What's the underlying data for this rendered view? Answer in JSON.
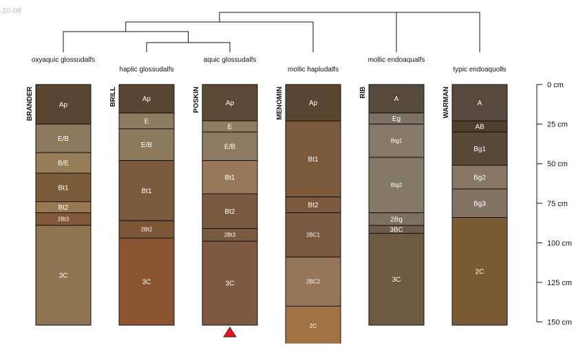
{
  "corner_label": "-10-08",
  "profiles": [
    {
      "id": "BRANDER",
      "classification": "oxyaquic glossudalfs",
      "label_row": 0,
      "horizons": [
        {
          "name": "Ap",
          "top": 0,
          "bottom": 25,
          "color": "#5a4630",
          "text_color": "#ffffff",
          "small": false
        },
        {
          "name": "E/B",
          "top": 25,
          "bottom": 43,
          "color": "#8c7a5f",
          "text_color": "#ffffff",
          "small": false
        },
        {
          "name": "B/E",
          "top": 43,
          "bottom": 56,
          "color": "#957e58",
          "text_color": "#ffffff",
          "small": false
        },
        {
          "name": "Bt1",
          "top": 56,
          "bottom": 74,
          "color": "#7a5d38",
          "text_color": "#ffffff",
          "small": false
        },
        {
          "name": "Bt2",
          "top": 74,
          "bottom": 81,
          "color": "#97784f",
          "text_color": "#ffffff",
          "small": false
        },
        {
          "name": "2Bt3",
          "top": 81,
          "bottom": 89,
          "color": "#835938",
          "text_color": "#ffffff",
          "small": true
        },
        {
          "name": "3C",
          "top": 89,
          "bottom": 152,
          "color": "#8e7450",
          "text_color": "#ffffff",
          "small": false
        }
      ],
      "marker": false
    },
    {
      "id": "BRILL",
      "classification": "haplic glossudalfs",
      "label_row": 1,
      "horizons": [
        {
          "name": "Ap",
          "top": 0,
          "bottom": 18,
          "color": "#5a4630",
          "text_color": "#ffffff",
          "small": false
        },
        {
          "name": "E",
          "top": 18,
          "bottom": 28,
          "color": "#8e7a5e",
          "text_color": "#ffffff",
          "small": false
        },
        {
          "name": "E/B",
          "top": 28,
          "bottom": 48,
          "color": "#8d7a5d",
          "text_color": "#ffffff",
          "small": false
        },
        {
          "name": "Bt1",
          "top": 48,
          "bottom": 86,
          "color": "#7a5a3c",
          "text_color": "#ffffff",
          "small": false
        },
        {
          "name": "2Bt2",
          "top": 86,
          "bottom": 97,
          "color": "#7d5838",
          "text_color": "#ffffff",
          "small": true
        },
        {
          "name": "3C",
          "top": 97,
          "bottom": 152,
          "color": "#8a5530",
          "text_color": "#ffffff",
          "small": false
        }
      ],
      "marker": false
    },
    {
      "id": "POSKIN",
      "classification": "aquic glossudalfs",
      "label_row": 0,
      "horizons": [
        {
          "name": "Ap",
          "top": 0,
          "bottom": 23,
          "color": "#5b4934",
          "text_color": "#ffffff",
          "small": false
        },
        {
          "name": "E",
          "top": 23,
          "bottom": 30,
          "color": "#937d60",
          "text_color": "#ffffff",
          "small": false
        },
        {
          "name": "E/B",
          "top": 30,
          "bottom": 48,
          "color": "#8e7b61",
          "text_color": "#ffffff",
          "small": false
        },
        {
          "name": "Bt1",
          "top": 48,
          "bottom": 69,
          "color": "#97795a",
          "text_color": "#ffffff",
          "small": false
        },
        {
          "name": "Bt2",
          "top": 69,
          "bottom": 91,
          "color": "#7a5a3e",
          "text_color": "#ffffff",
          "small": false
        },
        {
          "name": "2Bt3",
          "top": 91,
          "bottom": 99,
          "color": "#7a5b40",
          "text_color": "#ffffff",
          "small": true
        },
        {
          "name": "3C",
          "top": 99,
          "bottom": 152,
          "color": "#7e593f",
          "text_color": "#ffffff",
          "small": false
        }
      ],
      "marker": true
    },
    {
      "id": "MENOMIN",
      "classification": "mollic hapludalfs",
      "label_row": 1,
      "horizons": [
        {
          "name": "Ap",
          "top": 0,
          "bottom": 23,
          "color": "#5a4630",
          "text_color": "#ffffff",
          "small": false
        },
        {
          "name": "Bt1",
          "top": 23,
          "bottom": 71,
          "color": "#7a5a3b",
          "text_color": "#ffffff",
          "small": false
        },
        {
          "name": "Bt2",
          "top": 71,
          "bottom": 81,
          "color": "#7c593a",
          "text_color": "#ffffff",
          "small": false
        },
        {
          "name": "2BC1",
          "top": 81,
          "bottom": 109,
          "color": "#7a5a3e",
          "text_color": "#ffffff",
          "small": true
        },
        {
          "name": "2BC2",
          "top": 109,
          "bottom": 140,
          "color": "#957658",
          "text_color": "#ffffff",
          "small": true
        },
        {
          "name": "2C",
          "top": 140,
          "bottom": 165,
          "color": "#a37443",
          "text_color": "#ffffff",
          "small": true
        }
      ],
      "marker": false
    },
    {
      "id": "RIB",
      "classification": "mollic endoaqualfs",
      "label_row": 0,
      "horizons": [
        {
          "name": "A",
          "top": 0,
          "bottom": 18,
          "color": "#564a3f",
          "text_color": "#ffffff",
          "small": false
        },
        {
          "name": "Eg",
          "top": 18,
          "bottom": 25,
          "color": "#7d7365",
          "text_color": "#ffffff",
          "small": false
        },
        {
          "name": "Btg1",
          "top": 25,
          "bottom": 46,
          "color": "#857a68",
          "text_color": "#ffffff",
          "small": true
        },
        {
          "name": "Btg2",
          "top": 46,
          "bottom": 81,
          "color": "#837a66",
          "text_color": "#ffffff",
          "small": true
        },
        {
          "name": "2Bg",
          "top": 81,
          "bottom": 89,
          "color": "#7c705f",
          "text_color": "#ffffff",
          "small": false
        },
        {
          "name": "3BC",
          "top": 89,
          "bottom": 94,
          "color": "#6e5c48",
          "text_color": "#ffffff",
          "small": false
        },
        {
          "name": "3C",
          "top": 94,
          "bottom": 152,
          "color": "#6e5a42",
          "text_color": "#ffffff",
          "small": false
        }
      ],
      "marker": false
    },
    {
      "id": "WARMAN",
      "classification": "typic endoaquolls",
      "label_row": 1,
      "horizons": [
        {
          "name": "A",
          "top": 0,
          "bottom": 23,
          "color": "#564a3f",
          "text_color": "#ffffff",
          "small": false
        },
        {
          "name": "AB",
          "top": 23,
          "bottom": 30,
          "color": "#4e3e2c",
          "text_color": "#ffffff",
          "small": false
        },
        {
          "name": "Bg1",
          "top": 30,
          "bottom": 51,
          "color": "#5a4836",
          "text_color": "#ffffff",
          "small": false
        },
        {
          "name": "Bg2",
          "top": 51,
          "bottom": 66,
          "color": "#8a7763",
          "text_color": "#ffffff",
          "small": false
        },
        {
          "name": "Bg3",
          "top": 66,
          "bottom": 84,
          "color": "#847262",
          "text_color": "#ffffff",
          "small": false
        },
        {
          "name": "2C",
          "top": 84,
          "bottom": 152,
          "color": "#7a5a34",
          "text_color": "#ffffff",
          "small": false
        }
      ],
      "marker": false
    }
  ],
  "depth_axis": {
    "unit": "cm",
    "ticks": [
      {
        "value": 0,
        "label": "0 cm"
      },
      {
        "value": 25,
        "label": "25 cm"
      },
      {
        "value": 50,
        "label": "50 cm"
      },
      {
        "value": 75,
        "label": "75 cm"
      },
      {
        "value": 100,
        "label": "100 cm"
      },
      {
        "value": 125,
        "label": "125 cm"
      },
      {
        "value": 150,
        "label": "150 cm"
      }
    ]
  },
  "dendrogram": {
    "merges": [
      {
        "a": "BRILL",
        "b": "POSKIN",
        "height": 1
      },
      {
        "a": "BRANDER",
        "b": "m0",
        "height": 2
      },
      {
        "a": "m1",
        "b": "MENOMIN",
        "height": 3
      },
      {
        "a": "m2",
        "b": "RIB",
        "height": 4
      },
      {
        "a": "m3",
        "b": "WARMAN",
        "height": 5
      }
    ]
  }
}
